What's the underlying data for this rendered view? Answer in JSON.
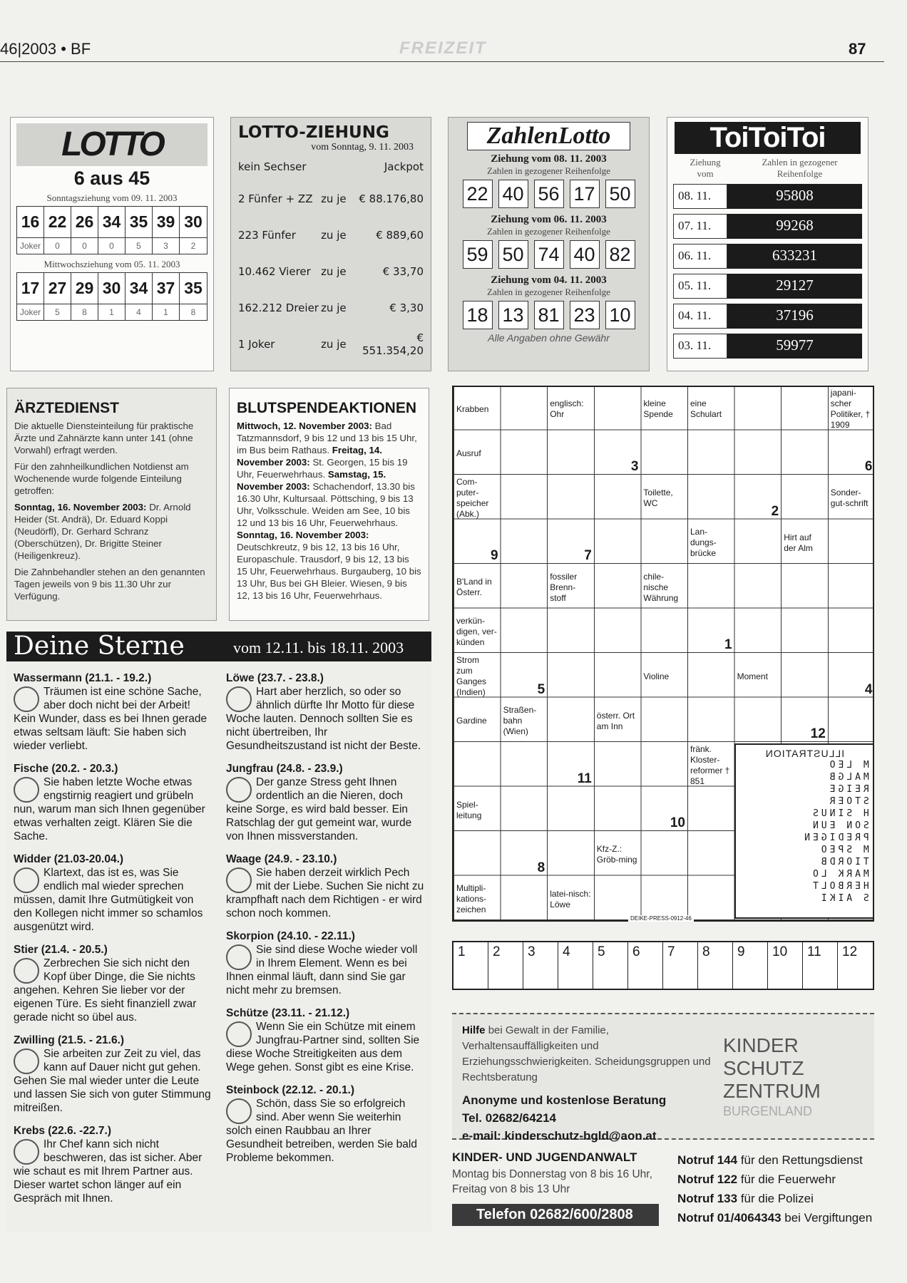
{
  "header": {
    "issue": "46|2003 • BF",
    "section": "FREIZEIT",
    "page": "87"
  },
  "lotto": {
    "logo": "LOTTO",
    "subtitle": "6 aus 45",
    "draws": [
      {
        "label": "Sonntagsziehung vom 09. 11. 2003",
        "numbers": [
          16,
          22,
          26,
          34,
          35,
          39,
          30
        ],
        "joker_label": "Joker",
        "joker": [
          0,
          0,
          0,
          5,
          3,
          2
        ]
      },
      {
        "label": "Mittwochsziehung vom 05. 11. 2003",
        "numbers": [
          17,
          27,
          29,
          30,
          34,
          37,
          35
        ],
        "joker_label": "Joker",
        "joker": [
          5,
          8,
          1,
          4,
          1,
          8
        ]
      }
    ]
  },
  "lotto_ziehung": {
    "title": "LOTTO-ZIEHUNG",
    "date": "vom Sonntag, 9. 11. 2003",
    "jackpot_row": {
      "label": "kein Sechser",
      "value": "Jackpot"
    },
    "rows": [
      {
        "label": "2 Fünfer + ZZ",
        "each": "zu je",
        "amount": "€ 88.176,80"
      },
      {
        "label": "223 Fünfer",
        "each": "zu je",
        "amount": "€ 889,60"
      },
      {
        "label": "10.462 Vierer",
        "each": "zu je",
        "amount": "€ 33,70"
      },
      {
        "label": "162.212 Dreier",
        "each": "zu je",
        "amount": "€ 3,30"
      },
      {
        "label": "1 Joker",
        "each": "zu je",
        "amount": "€ 551.354,20"
      }
    ]
  },
  "zahlenlotto": {
    "logo": "ZahlenLotto",
    "draws": [
      {
        "label": "Ziehung vom 08. 11. 2003",
        "sub": "Zahlen in gezogener Reihenfolge",
        "numbers": [
          22,
          40,
          56,
          17,
          50
        ]
      },
      {
        "label": "Ziehung vom 06. 11. 2003",
        "sub": "Zahlen in gezogener Reihenfolge",
        "numbers": [
          59,
          50,
          74,
          40,
          82
        ]
      },
      {
        "label": "Ziehung vom 04. 11. 2003",
        "sub": "Zahlen in gezogener Reihenfolge",
        "numbers": [
          18,
          13,
          81,
          23,
          10
        ]
      }
    ],
    "note": "Alle Angaben ohne Gewähr"
  },
  "toitoitoi": {
    "logo": "ToiToiToi",
    "col_date": "Ziehung vom",
    "col_numbers": "Zahlen in gezogener Reihenfolge",
    "rows": [
      {
        "date": "08. 11.",
        "number": 95808
      },
      {
        "date": "07. 11.",
        "number": 99268
      },
      {
        "date": "06. 11.",
        "number": 633231
      },
      {
        "date": "05. 11.",
        "number": 29127
      },
      {
        "date": "04. 11.",
        "number": 37196
      },
      {
        "date": "03. 11.",
        "number": 59977
      }
    ]
  },
  "aerztedienst": {
    "title": "ÄRZTEDIENST",
    "paragraphs": [
      {
        "text": "Die aktuelle Diensteinteilung für praktische Ärzte und Zahnärzte kann unter 141 (ohne Vorwahl) erfragt werden."
      },
      {
        "text": "Für den zahnheilkundlichen Notdienst am Wochenende wurde folgende Einteilung getroffen:"
      },
      {
        "bold": "Sonntag, 16. November 2003:",
        "text": "Dr. Arnold Heider (St. Andrä), Dr. Eduard Koppi (Neudörfl), Dr. Gerhard Schranz (Oberschützen), Dr. Brigitte Steiner (Heiligenkreuz)."
      },
      {
        "text": "Die Zahnbehandler stehen an den genannten Tagen jeweils von 9 bis 11.30 Uhr zur Verfügung."
      }
    ]
  },
  "blutspende": {
    "title": "BLUTSPENDEAKTIONEN",
    "entries": [
      {
        "bold": "Mittwoch, 12. November 2003:",
        "text": "Bad Tatzmannsdorf, 9 bis 12 und 13 bis 15 Uhr, im Bus beim Rathaus."
      },
      {
        "bold": "Freitag, 14. November 2003:",
        "text": "St. Georgen, 15 bis 19 Uhr, Feuerwehrhaus."
      },
      {
        "bold": "Samstag, 15. November 2003:",
        "text": "Schachendorf, 13.30 bis 16.30 Uhr, Kultursaal. Pöttsching, 9 bis 13 Uhr, Volksschule. Weiden am See, 10 bis 12 und 13 bis 16 Uhr, Feuerwehrhaus."
      },
      {
        "bold": "Sonntag, 16. November 2003:",
        "text": "Deutschkreutz, 9 bis 12, 13 bis 16 Uhr, Europaschule. Trausdorf, 9 bis 12, 13 bis 15 Uhr, Feuerwehrhaus. Burgauberg, 10 bis 13 Uhr, Bus bei GH Bleier. Wiesen, 9 bis 12, 13 bis 16 Uhr, Feuerwehrhaus."
      }
    ]
  },
  "sterne": {
    "title": "Deine Sterne",
    "dates": "vom 12.11. bis 18.11. 2003",
    "signs": [
      {
        "name": "Wassermann (21.1. - 19.2.)",
        "text": "Träumen ist eine schöne Sache, aber doch nicht bei der Arbeit! Kein Wunder, dass es bei Ihnen gerade etwas seltsam läuft: Sie haben sich wieder verliebt."
      },
      {
        "name": "Fische (20.2. - 20.3.)",
        "text": "Sie haben letzte Woche etwas engstirnig reagiert und grübeln nun, warum man sich Ihnen gegenüber etwas verhalten zeigt. Klären Sie die Sache."
      },
      {
        "name": "Widder (21.03-20.04.)",
        "text": "Klartext, das ist es, was Sie endlich mal wieder sprechen müssen, damit Ihre Gutmütigkeit von den Kollegen nicht immer so schamlos ausgenützt wird."
      },
      {
        "name": "Stier (21.4. - 20.5.)",
        "text": "Zerbrechen Sie sich nicht den Kopf über Dinge, die Sie nichts angehen. Kehren Sie lieber vor der eigenen Türe. Es sieht finanziell zwar gerade nicht so übel aus."
      },
      {
        "name": "Zwilling (21.5. - 21.6.)",
        "text": "Sie arbeiten zur Zeit zu viel, das kann auf Dauer nicht gut gehen. Gehen Sie mal wieder unter die Leute und lassen Sie sich von guter Stimmung mitreißen."
      },
      {
        "name": "Krebs (22.6. -22.7.)",
        "text": "Ihr Chef kann sich nicht beschweren, das ist sicher. Aber wie schaut es mit Ihrem Partner aus. Dieser wartet schon länger auf ein Gespräch mit Ihnen."
      },
      {
        "name": "Löwe (23.7. - 23.8.)",
        "text": "Hart aber herzlich, so oder so ähnlich dürfte Ihr Motto für diese Woche lauten. Dennoch sollten Sie es nicht übertreiben, Ihr Gesundheitszustand ist nicht der Beste."
      },
      {
        "name": "Jungfrau (24.8. - 23.9.)",
        "text": "Der ganze Stress geht Ihnen ordentlich an die Nieren, doch keine Sorge, es wird bald besser. Ein Ratschlag der gut gemeint war, wurde von Ihnen missverstanden."
      },
      {
        "name": "Waage (24.9. - 23.10.)",
        "text": "Sie haben derzeit wirklich Pech mit der Liebe. Suchen Sie nicht zu krampfhaft nach dem Richtigen - er wird schon noch kommen."
      },
      {
        "name": "Skorpion (24.10. - 22.11.)",
        "text": "Sie sind diese Woche wieder voll in Ihrem Element. Wenn es bei Ihnen einmal läuft, dann sind Sie gar nicht mehr zu bremsen."
      },
      {
        "name": "Schütze (23.11. - 21.12.)",
        "text": "Wenn Sie ein Schütze mit einem Jungfrau-Partner sind, sollten Sie diese Woche Streitigkeiten aus dem Wege gehen. Sonst gibt es eine Krise."
      },
      {
        "name": "Steinbock (22.12. - 20.1.)",
        "text": "Schön, dass Sie so erfolgreich sind. Aber wenn Sie weiterhin solch einen Raubbau an Ihrer Gesundheit betreiben, werden Sie bald Probleme bekommen."
      }
    ]
  },
  "crossword": {
    "clues": [
      "Krabben",
      "englisch: Ohr",
      "kleine Spende",
      "eine Schulart",
      "japani-scher Politiker, † 1909",
      "Ausruf",
      "Com-puter-speicher (Abk.)",
      "Toilette, WC",
      "Sonder-gut-schrift",
      "Lan-dungs-brücke",
      "Hirt auf der Alm",
      "B'Land in Österr.",
      "fossiler Brenn-stoff",
      "chile-nische Währung",
      "verkün-digen, ver-künden",
      "Strom zum Ganges (Indien)",
      "Violine",
      "Moment",
      "Gardine",
      "Straßen-bahn (Wien)",
      "österr. Ort am Inn",
      "fränk. Kloster-reformer † 851",
      "Spiel-leitung",
      "Kfz-Z.: Gröb-ming",
      "Multipli-kations-zeichen",
      "latei-nisch: Löwe"
    ],
    "numbers": [
      3,
      6,
      2,
      9,
      7,
      1,
      5,
      4,
      12,
      11,
      10,
      8
    ],
    "illustration_title": "ILLUSTRATION",
    "illustration_rows": [
      "M LEO",
      "MALGB",
      "REIGE",
      "STOER",
      "H SINUS",
      "SON EUN",
      "PREDIGEN",
      "M SPEO",
      "TIORDB",
      "MARK LO",
      "HERBOLT",
      "S AIKI"
    ],
    "credit": "DEIKE-PRESS-0912-46",
    "solution": [
      1,
      2,
      3,
      4,
      5,
      6,
      7,
      8,
      9,
      10,
      11,
      12
    ]
  },
  "hilfe": {
    "bold": "Hilfe",
    "lines": [
      "bei Gewalt in der Familie, Verhaltensauffälligkeiten und Erziehungsschwierigkeiten. Scheidungsgruppen und Rechtsberatung"
    ],
    "contact": [
      "Anonyme und kostenlose Beratung",
      "Tel. 02682/64214",
      "e-mail: kinderschutz-bgld@aon.at"
    ],
    "logo": [
      "KINDER",
      "SCHUTZ",
      "ZENTRUM",
      "BURGENLAND"
    ]
  },
  "anwalt": {
    "title": "KINDER- UND JUGENDANWALT",
    "text": "Montag bis Donnerstag von 8 bis 16 Uhr, Freitag von 8 bis 13 Uhr",
    "phone": "Telefon 02682/600/2808"
  },
  "notruf": [
    {
      "bold": "Notruf 144",
      "text": "für den Rettungsdienst"
    },
    {
      "bold": "Notruf 122",
      "text": "für die Feuerwehr"
    },
    {
      "bold": "Notruf 133",
      "text": "für die Polizei"
    },
    {
      "bold": "Notruf 01/4064343",
      "text": "bei Vergiftungen"
    }
  ]
}
